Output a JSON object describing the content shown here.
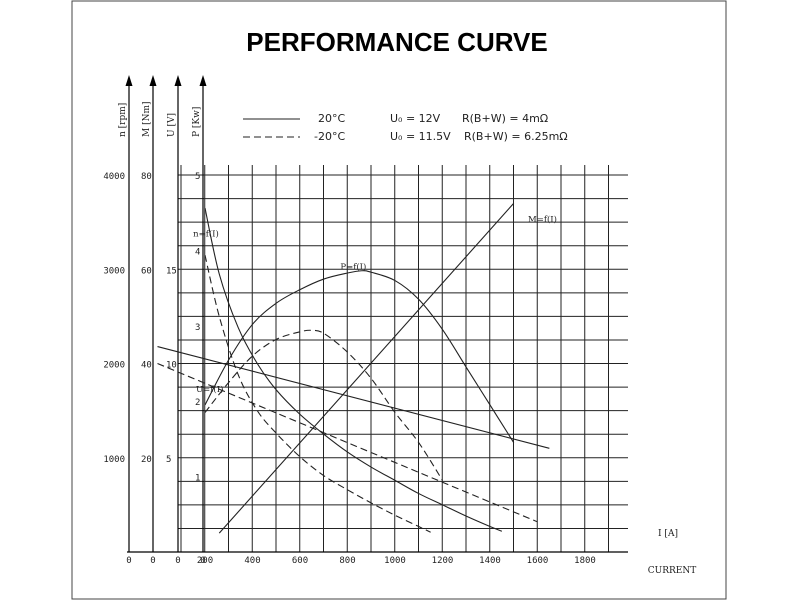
{
  "title": "PERFORMANCE CURVE",
  "legend": [
    {
      "temp": "20°C",
      "voltage": "U₀ = 12V",
      "resistance": "R(B+W) = 4mΩ",
      "style": "solid"
    },
    {
      "temp": "-20°C",
      "voltage": "U₀ = 11.5V",
      "resistance": "R(B+W) = 6.25mΩ",
      "style": "dashed"
    }
  ],
  "chart_data": {
    "type": "line",
    "xlabel": "I [A]",
    "xlabel_sub": "CURRENT",
    "xlim": [
      0,
      1800
    ],
    "x_ticks": [
      0,
      200,
      400,
      600,
      800,
      1000,
      1200,
      1400,
      1600,
      1800
    ],
    "y_axes": [
      {
        "name": "n [rpm]",
        "range": [
          0,
          4000
        ],
        "ticks": [
          1000,
          2000,
          3000,
          4000
        ],
        "extra_ticks": [
          0
        ]
      },
      {
        "name": "M [Nm]",
        "range": [
          0,
          80
        ],
        "ticks": [
          20,
          40,
          60,
          80
        ],
        "extra_ticks": [
          0
        ]
      },
      {
        "name": "U [V]",
        "range": [
          0,
          20
        ],
        "ticks": [
          5,
          10,
          15
        ],
        "extra_ticks": [
          0
        ]
      },
      {
        "name": "P [Kw]",
        "range": [
          0,
          5
        ],
        "ticks": [
          1,
          2,
          3,
          4,
          5
        ],
        "extra_ticks": [
          0
        ]
      }
    ],
    "curve_labels": [
      {
        "text": "n=f(I)",
        "x": 150,
        "y": 3350,
        "axis": 0
      },
      {
        "text": "P=f(I)",
        "x": 770,
        "y": 3000,
        "axis": 0
      },
      {
        "text": "M=f(I)",
        "x": 1560,
        "y": 3500,
        "axis": 0
      },
      {
        "text": "U=f(I)",
        "x": 0,
        "y": 1700,
        "axis": 0
      }
    ],
    "series": [
      {
        "style": "solid",
        "axis": "n [rpm]",
        "x": [
          200,
          260,
          340,
          420,
          500,
          600,
          700,
          800,
          900,
          1000,
          1100,
          1200,
          1300,
          1400,
          1450
        ],
        "y": [
          3650,
          2950,
          2380,
          2000,
          1720,
          1460,
          1250,
          1060,
          900,
          760,
          620,
          500,
          380,
          270,
          220
        ]
      },
      {
        "style": "dashed",
        "axis": "n [rpm]",
        "x": [
          200,
          260,
          340,
          420,
          500,
          600,
          700,
          800,
          900,
          1000,
          1100,
          1150
        ],
        "y": [
          3150,
          2500,
          1880,
          1500,
          1260,
          1010,
          810,
          660,
          520,
          390,
          270,
          210
        ]
      },
      {
        "style": "solid",
        "axis": "P [Kw]",
        "x": [
          200,
          300,
          400,
          500,
          600,
          700,
          800,
          860,
          900,
          1000,
          1100,
          1200,
          1300,
          1400,
          1500
        ],
        "y": [
          1.95,
          2.55,
          3.02,
          3.3,
          3.48,
          3.62,
          3.7,
          3.73,
          3.71,
          3.6,
          3.35,
          2.95,
          2.45,
          1.95,
          1.45
        ]
      },
      {
        "style": "dashed",
        "axis": "P [Kw]",
        "x": [
          200,
          300,
          400,
          500,
          600,
          650,
          700,
          800,
          900,
          1000,
          1100,
          1200
        ],
        "y": [
          1.85,
          2.25,
          2.6,
          2.82,
          2.92,
          2.94,
          2.9,
          2.65,
          2.3,
          1.85,
          1.45,
          0.95
        ]
      },
      {
        "style": "solid",
        "axis": "M [Nm]",
        "x": [
          260,
          1500
        ],
        "y": [
          4,
          74
        ]
      },
      {
        "style": "solid",
        "axis": "U [V]",
        "x": [
          0,
          1650
        ],
        "y": [
          10.9,
          5.5
        ]
      },
      {
        "style": "dashed",
        "axis": "U [V]",
        "x": [
          0,
          1600
        ],
        "y": [
          10.0,
          1.6
        ]
      }
    ],
    "grid": true
  }
}
